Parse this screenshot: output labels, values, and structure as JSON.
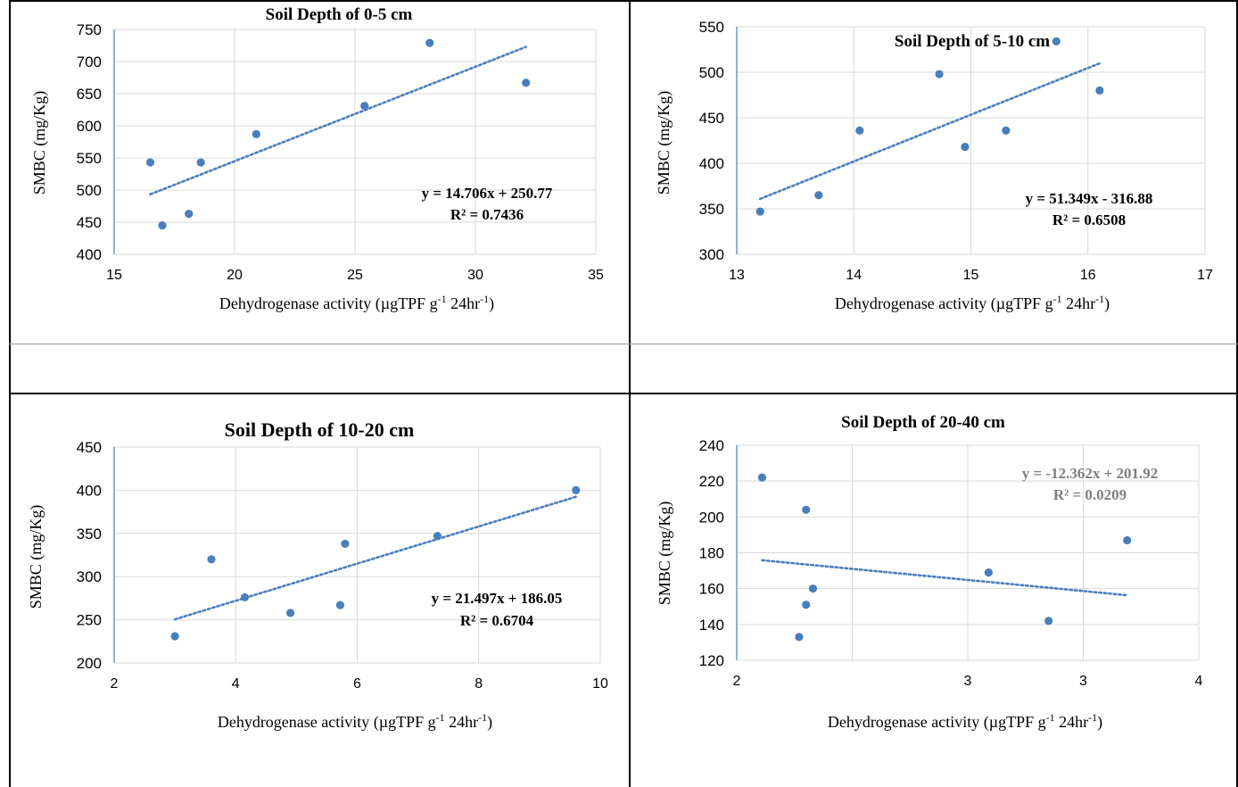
{
  "chart_data": [
    {
      "type": "scatter",
      "title": "Soil Depth of 0-5 cm",
      "xlabel": {
        "main": "Dehydrogenase activity (µgTPF g",
        "sup1": "-1",
        "mid": " 24hr",
        "sup2": "-1",
        "end": ")"
      },
      "ylabel": "SMBC (mg/Kg)",
      "xlim": [
        15,
        35
      ],
      "ylim": [
        400,
        750
      ],
      "xticks": [
        15,
        20,
        25,
        30,
        35
      ],
      "yticks": [
        400,
        450,
        500,
        550,
        600,
        650,
        700,
        750
      ],
      "x_tick_labels": [
        "15",
        "20",
        "25",
        "30",
        "35"
      ],
      "y_tick_labels": [
        "400",
        "450",
        "500",
        "550",
        "600",
        "650",
        "700",
        "750"
      ],
      "grid": true,
      "points": [
        {
          "x": 16.5,
          "y": 543
        },
        {
          "x": 17.0,
          "y": 445
        },
        {
          "x": 18.1,
          "y": 463
        },
        {
          "x": 18.6,
          "y": 543
        },
        {
          "x": 20.9,
          "y": 587
        },
        {
          "x": 25.4,
          "y": 631
        },
        {
          "x": 28.1,
          "y": 729
        },
        {
          "x": 32.1,
          "y": 667
        }
      ],
      "trendline": {
        "slope": 14.706,
        "intercept": 250.77,
        "x_range": [
          16.5,
          32.1
        ]
      },
      "equation": "y = 14.706x + 250.77",
      "r2": "R² = 0.7436",
      "point_color": "#4a7ebb",
      "trend_color": "#4a7ebb",
      "eq_color": "#000000"
    },
    {
      "type": "scatter",
      "title": "Soil Depth of 5-10 cm",
      "xlabel": {
        "main": "Dehydrogenase activity (µgTPF g",
        "sup1": "-1",
        "mid": " 24hr",
        "sup2": "-1",
        "end": ")"
      },
      "ylabel": "SMBC (mg/Kg)",
      "xlim": [
        13,
        17
      ],
      "ylim": [
        300,
        550
      ],
      "xticks": [
        13,
        14,
        15,
        16,
        17
      ],
      "yticks": [
        300,
        350,
        400,
        450,
        500,
        550
      ],
      "x_tick_labels": [
        "13",
        "14",
        "15",
        "16",
        "17"
      ],
      "y_tick_labels": [
        "300",
        "350",
        "400",
        "450",
        "500",
        "550"
      ],
      "grid": true,
      "points": [
        {
          "x": 13.2,
          "y": 347
        },
        {
          "x": 13.7,
          "y": 365
        },
        {
          "x": 14.05,
          "y": 436
        },
        {
          "x": 14.73,
          "y": 498
        },
        {
          "x": 14.95,
          "y": 418
        },
        {
          "x": 15.3,
          "y": 436
        },
        {
          "x": 15.73,
          "y": 534
        },
        {
          "x": 16.1,
          "y": 480
        }
      ],
      "trendline": {
        "slope": 51.349,
        "intercept": -316.88,
        "x_range": [
          13.2,
          16.1
        ]
      },
      "equation": "y = 51.349x - 316.88",
      "r2": "R² = 0.6508",
      "point_color": "#4a7ebb",
      "trend_color": "#4a7ebb",
      "eq_color": "#000000"
    },
    {
      "type": "scatter",
      "title": "Soil Depth of 10-20 cm",
      "xlabel": {
        "main": "Dehydrogenase activity (µgTPF g",
        "sup1": "-1",
        "mid": " 24hr",
        "sup2": "-1",
        "end": ")"
      },
      "ylabel": "SMBC (mg/Kg)",
      "xlim": [
        2,
        10
      ],
      "ylim": [
        200,
        450
      ],
      "xticks": [
        2,
        4,
        6,
        8,
        10
      ],
      "yticks": [
        200,
        250,
        300,
        350,
        400,
        450
      ],
      "x_tick_labels": [
        "2",
        "4",
        "6",
        "8",
        "10"
      ],
      "y_tick_labels": [
        "200",
        "250",
        "300",
        "350",
        "400",
        "450"
      ],
      "grid": true,
      "points": [
        {
          "x": 3.0,
          "y": 231
        },
        {
          "x": 3.6,
          "y": 320
        },
        {
          "x": 4.15,
          "y": 276
        },
        {
          "x": 4.9,
          "y": 258
        },
        {
          "x": 5.72,
          "y": 267
        },
        {
          "x": 5.8,
          "y": 338
        },
        {
          "x": 7.32,
          "y": 347
        },
        {
          "x": 9.6,
          "y": 400
        }
      ],
      "trendline": {
        "slope": 21.497,
        "intercept": 186.05,
        "x_range": [
          3.0,
          9.6
        ]
      },
      "equation": "y = 21.497x + 186.05",
      "r2": "R² = 0.6704",
      "point_color": "#4a7ebb",
      "trend_color": "#4a7ebb",
      "eq_color": "#000000"
    },
    {
      "type": "scatter",
      "title": "Soil Depth of 20-40 cm",
      "xlabel": {
        "main": "Dehydrogenase activity (µgTPF g",
        "sup1": "-1",
        "mid": " 24hr",
        "sup2": "-1",
        "end": ")"
      },
      "ylabel": "SMBC (mg/Kg)",
      "xlim": [
        2,
        4
      ],
      "ylim": [
        120,
        240
      ],
      "xticks": [
        2,
        2.5,
        3,
        3.5,
        4
      ],
      "yticks": [
        120,
        140,
        160,
        180,
        200,
        220,
        240
      ],
      "x_tick_labels": [
        "2",
        "",
        "3",
        "3",
        "4"
      ],
      "y_tick_labels": [
        "120",
        "140",
        "160",
        "180",
        "200",
        "220",
        "240"
      ],
      "grid": true,
      "points": [
        {
          "x": 2.11,
          "y": 222
        },
        {
          "x": 2.3,
          "y": 204
        },
        {
          "x": 2.27,
          "y": 133
        },
        {
          "x": 2.3,
          "y": 151
        },
        {
          "x": 2.33,
          "y": 160
        },
        {
          "x": 3.09,
          "y": 169
        },
        {
          "x": 3.35,
          "y": 142
        },
        {
          "x": 3.69,
          "y": 187
        }
      ],
      "trendline": {
        "slope": -12.362,
        "intercept": 201.92,
        "x_range": [
          2.11,
          3.69
        ]
      },
      "equation": "y = -12.362x + 201.92",
      "r2": "R² = 0.0209",
      "point_color": "#4a7ebb",
      "trend_color": "#4a7ebb",
      "eq_color": "#7f7f7f"
    }
  ]
}
